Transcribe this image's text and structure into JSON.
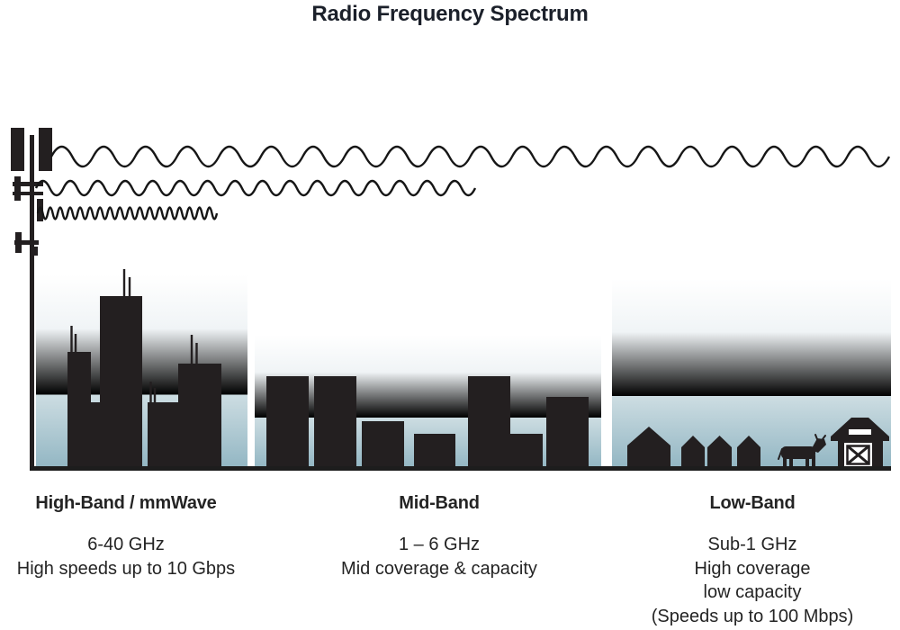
{
  "title": "Radio Frequency Spectrum",
  "colors": {
    "title_ink": "#1b202a",
    "ink": "#242424",
    "silhouette": "#231f20",
    "wave_ink": "#161616",
    "sky_top": "#ffffff",
    "sky_bottom": "#92b6c3"
  },
  "tower_icon": "cell-tower-icon",
  "bands": [
    {
      "name": "High-Band / mmWave",
      "frequency": "6-40 GHz",
      "details": [
        "High speeds up to 10 Gbps"
      ],
      "scene_icon": "city-skyscrapers",
      "wave_icon": "high-frequency-short-wavelength-wave"
    },
    {
      "name": "Mid-Band",
      "frequency": "1 – 6 GHz",
      "details": [
        "Mid coverage & capacity"
      ],
      "scene_icon": "mid-rise-buildings",
      "wave_icon": "medium-frequency-medium-wavelength-wave"
    },
    {
      "name": "Low-Band",
      "frequency": "Sub-1 GHz",
      "details": [
        "High coverage",
        "low capacity",
        "(Speeds up to 100 Mbps)"
      ],
      "scene_icon": "rural-houses-cow-barn",
      "wave_icon": "low-frequency-long-wavelength-wave"
    }
  ]
}
